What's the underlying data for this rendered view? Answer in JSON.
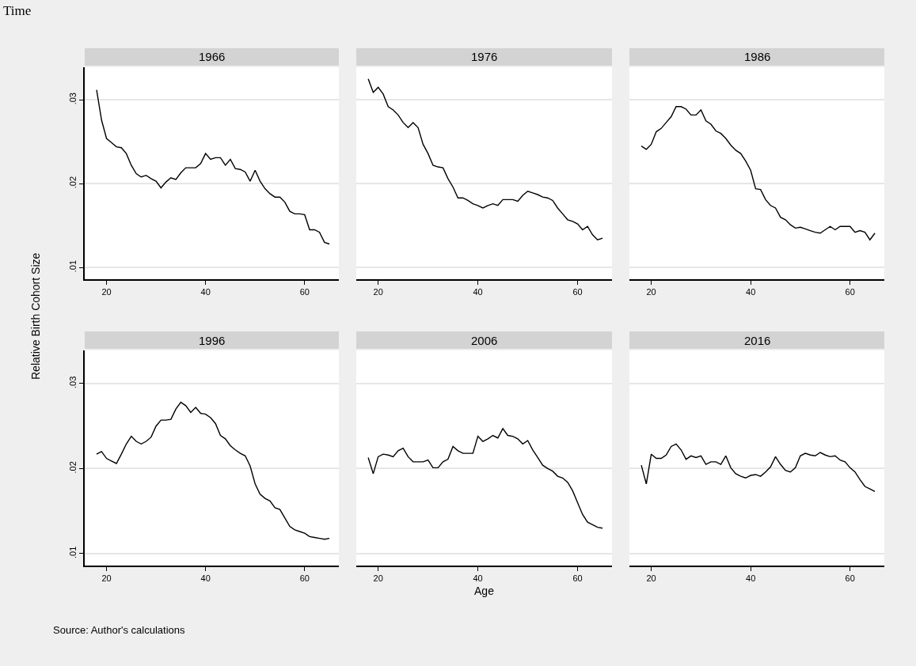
{
  "chart_data": [
    {
      "type": "line",
      "title": "1966",
      "ylabel": "Relative Birth Cohort Size",
      "annotations": [
        "Time"
      ],
      "grid": "y",
      "color": "#000000",
      "xlim": [
        15.6,
        66.9
      ],
      "xticks": [
        20,
        40,
        60
      ],
      "ylim": [
        0.0086,
        0.0339
      ],
      "yticks": [
        {
          "value": 0.01,
          "label": ".01"
        },
        {
          "value": 0.02,
          "label": ".02"
        },
        {
          "value": 0.03,
          "label": ".03"
        }
      ],
      "x": [
        18,
        19,
        20,
        21,
        22,
        23,
        24,
        25,
        26,
        27,
        28,
        29,
        30,
        31,
        32,
        33,
        34,
        35,
        36,
        37,
        38,
        39,
        40,
        41,
        42,
        43,
        44,
        45,
        46,
        47,
        48,
        49,
        50,
        51,
        52,
        53,
        54,
        55,
        56,
        57,
        58,
        59,
        60,
        61,
        62,
        63,
        64,
        65
      ],
      "values": [
        0.0312,
        0.0276,
        0.0254,
        0.0249,
        0.0244,
        0.0243,
        0.0236,
        0.0222,
        0.0212,
        0.0208,
        0.021,
        0.0206,
        0.0203,
        0.0195,
        0.0202,
        0.0207,
        0.0205,
        0.0213,
        0.0219,
        0.0219,
        0.0219,
        0.0224,
        0.0236,
        0.0229,
        0.0231,
        0.0231,
        0.0222,
        0.0229,
        0.0218,
        0.0217,
        0.0214,
        0.0203,
        0.0216,
        0.0203,
        0.0194,
        0.0188,
        0.0184,
        0.0184,
        0.0178,
        0.0167,
        0.0164,
        0.0164,
        0.0163,
        0.0145,
        0.0145,
        0.0142,
        0.013,
        0.0128
      ]
    },
    {
      "type": "line",
      "title": "1976",
      "tick_labels": "x",
      "grid": "y",
      "color": "#000000",
      "xlim": [
        15.6,
        66.9
      ],
      "xticks": [
        20,
        40,
        60
      ],
      "ylim": [
        0.0086,
        0.0339
      ],
      "yticks": [
        0.01,
        0.02,
        0.03
      ],
      "x": [
        18,
        19,
        20,
        21,
        22,
        23,
        24,
        25,
        26,
        27,
        28,
        29,
        30,
        31,
        32,
        33,
        34,
        35,
        36,
        37,
        38,
        39,
        40,
        41,
        42,
        43,
        44,
        45,
        46,
        47,
        48,
        49,
        50,
        51,
        52,
        53,
        54,
        55,
        56,
        57,
        58,
        59,
        60,
        61,
        62,
        63,
        64,
        65
      ],
      "values": [
        0.0325,
        0.0309,
        0.0315,
        0.0307,
        0.0292,
        0.0288,
        0.0282,
        0.0273,
        0.0267,
        0.0273,
        0.0267,
        0.0247,
        0.0236,
        0.0222,
        0.022,
        0.0219,
        0.0206,
        0.0196,
        0.0183,
        0.0183,
        0.018,
        0.0176,
        0.0174,
        0.0171,
        0.0174,
        0.0176,
        0.0174,
        0.0181,
        0.0181,
        0.0181,
        0.0179,
        0.0186,
        0.0191,
        0.0189,
        0.0187,
        0.0184,
        0.0183,
        0.018,
        0.0171,
        0.0164,
        0.0157,
        0.0155,
        0.0152,
        0.0145,
        0.0149,
        0.0139,
        0.0133,
        0.0135
      ]
    },
    {
      "type": "line",
      "title": "1986",
      "tick_labels": "x",
      "grid": "y",
      "color": "#000000",
      "xlim": [
        15.6,
        66.9
      ],
      "xticks": [
        20,
        40,
        60
      ],
      "ylim": [
        0.0086,
        0.0339
      ],
      "yticks": [
        0.01,
        0.02,
        0.03
      ],
      "x": [
        18,
        19,
        20,
        21,
        22,
        23,
        24,
        25,
        26,
        27,
        28,
        29,
        30,
        31,
        32,
        33,
        34,
        35,
        36,
        37,
        38,
        39,
        40,
        41,
        42,
        43,
        44,
        45,
        46,
        47,
        48,
        49,
        50,
        51,
        52,
        53,
        54,
        55,
        56,
        57,
        58,
        59,
        60,
        61,
        62,
        63,
        64,
        65
      ],
      "values": [
        0.0245,
        0.0241,
        0.0247,
        0.0262,
        0.0266,
        0.0273,
        0.028,
        0.0292,
        0.0292,
        0.0289,
        0.0282,
        0.0282,
        0.0288,
        0.0275,
        0.0271,
        0.0263,
        0.026,
        0.0254,
        0.0246,
        0.024,
        0.0236,
        0.0227,
        0.0216,
        0.0194,
        0.0193,
        0.0181,
        0.0174,
        0.0171,
        0.016,
        0.0157,
        0.0151,
        0.0147,
        0.0148,
        0.0146,
        0.0144,
        0.0142,
        0.0141,
        0.0145,
        0.0149,
        0.0145,
        0.0149,
        0.0149,
        0.0149,
        0.0142,
        0.0144,
        0.0142,
        0.0133,
        0.0141
      ]
    },
    {
      "type": "line",
      "title": "1996",
      "grid": "y",
      "color": "#000000",
      "xlim": [
        15.6,
        66.9
      ],
      "xticks": [
        20,
        40,
        60
      ],
      "ylim": [
        0.0086,
        0.0339
      ],
      "yticks": [
        {
          "value": 0.01,
          "label": ".01"
        },
        {
          "value": 0.02,
          "label": ".02"
        },
        {
          "value": 0.03,
          "label": ".03"
        }
      ],
      "x": [
        18,
        19,
        20,
        21,
        22,
        23,
        24,
        25,
        26,
        27,
        28,
        29,
        30,
        31,
        32,
        33,
        34,
        35,
        36,
        37,
        38,
        39,
        40,
        41,
        42,
        43,
        44,
        45,
        46,
        47,
        48,
        49,
        50,
        51,
        52,
        53,
        54,
        55,
        56,
        57,
        58,
        59,
        60,
        61,
        62,
        63,
        64,
        65
      ],
      "values": [
        0.0217,
        0.022,
        0.0212,
        0.0209,
        0.0206,
        0.0217,
        0.0229,
        0.0238,
        0.0232,
        0.0229,
        0.0232,
        0.0237,
        0.025,
        0.0257,
        0.0257,
        0.0258,
        0.027,
        0.0278,
        0.0274,
        0.0266,
        0.0272,
        0.0265,
        0.0264,
        0.026,
        0.0253,
        0.0239,
        0.0235,
        0.0227,
        0.0222,
        0.0218,
        0.0215,
        0.0203,
        0.0182,
        0.017,
        0.0165,
        0.0162,
        0.0154,
        0.0152,
        0.0142,
        0.0132,
        0.0128,
        0.0126,
        0.0124,
        0.012,
        0.0119,
        0.0118,
        0.0117,
        0.0118
      ]
    },
    {
      "type": "line",
      "title": "2006",
      "xlabel": "Age",
      "tick_labels": "x",
      "grid": "y",
      "color": "#000000",
      "xlim": [
        15.6,
        66.9
      ],
      "xticks": [
        20,
        40,
        60
      ],
      "ylim": [
        0.0086,
        0.0339
      ],
      "yticks": [
        0.01,
        0.02,
        0.03
      ],
      "x": [
        18,
        19,
        20,
        21,
        22,
        23,
        24,
        25,
        26,
        27,
        28,
        29,
        30,
        31,
        32,
        33,
        34,
        35,
        36,
        37,
        38,
        39,
        40,
        41,
        42,
        43,
        44,
        45,
        46,
        47,
        48,
        49,
        50,
        51,
        52,
        53,
        54,
        55,
        56,
        57,
        58,
        59,
        60,
        61,
        62,
        63,
        64,
        65
      ],
      "values": [
        0.0213,
        0.0194,
        0.0214,
        0.0217,
        0.0216,
        0.0214,
        0.0221,
        0.0224,
        0.0214,
        0.0208,
        0.0208,
        0.0208,
        0.021,
        0.0201,
        0.0201,
        0.0208,
        0.0211,
        0.0226,
        0.0221,
        0.0218,
        0.0218,
        0.0218,
        0.0238,
        0.0232,
        0.0235,
        0.0239,
        0.0236,
        0.0247,
        0.0239,
        0.0238,
        0.0235,
        0.0229,
        0.0233,
        0.0222,
        0.0213,
        0.0204,
        0.02,
        0.0197,
        0.0191,
        0.0189,
        0.0184,
        0.0174,
        0.016,
        0.0146,
        0.0137,
        0.0134,
        0.0131,
        0.013
      ]
    },
    {
      "type": "line",
      "title": "2016",
      "tick_labels": "x",
      "annotations": [
        "Source: Author's calculations"
      ],
      "grid": "y",
      "color": "#000000",
      "xlim": [
        15.6,
        66.9
      ],
      "xticks": [
        20,
        40,
        60
      ],
      "ylim": [
        0.0086,
        0.0339
      ],
      "yticks": [
        0.01,
        0.02,
        0.03
      ],
      "x": [
        18,
        19,
        20,
        21,
        22,
        23,
        24,
        25,
        26,
        27,
        28,
        29,
        30,
        31,
        32,
        33,
        34,
        35,
        36,
        37,
        38,
        39,
        40,
        41,
        42,
        43,
        44,
        45,
        46,
        47,
        48,
        49,
        50,
        51,
        52,
        53,
        54,
        55,
        56,
        57,
        58,
        59,
        60,
        61,
        62,
        63,
        64,
        65
      ],
      "values": [
        0.0204,
        0.0182,
        0.0217,
        0.0212,
        0.0212,
        0.0216,
        0.0226,
        0.0229,
        0.0222,
        0.0211,
        0.0215,
        0.0213,
        0.0215,
        0.0205,
        0.0208,
        0.0208,
        0.0205,
        0.0215,
        0.0201,
        0.0194,
        0.0191,
        0.0189,
        0.0192,
        0.0193,
        0.0191,
        0.0196,
        0.0202,
        0.0214,
        0.0205,
        0.0198,
        0.0196,
        0.0201,
        0.0215,
        0.0218,
        0.0216,
        0.0215,
        0.0219,
        0.0216,
        0.0214,
        0.0215,
        0.021,
        0.0208,
        0.0201,
        0.0196,
        0.0187,
        0.0179,
        0.0176,
        0.0173
      ]
    }
  ]
}
